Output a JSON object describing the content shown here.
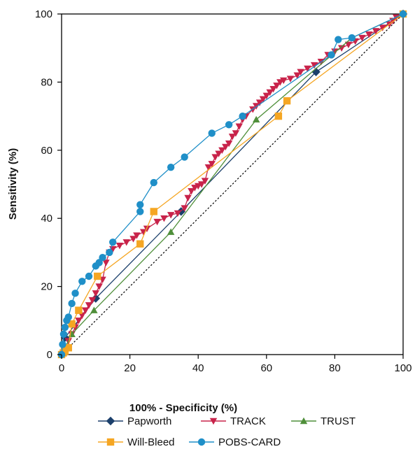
{
  "chart_data": {
    "type": "line",
    "xlabel": "100% - Specificity (%)",
    "ylabel": "Sensitivity (%)",
    "xlim": [
      0,
      100
    ],
    "ylim": [
      0,
      100
    ],
    "xticks": [
      "0",
      "20",
      "40",
      "60",
      "80",
      "100"
    ],
    "yticks": [
      "0",
      "20",
      "40",
      "60",
      "80",
      "100"
    ],
    "grid": false,
    "reference_line": "diagonal dotted line from (0,0) to (100,100)",
    "legend_position": "bottom",
    "series": [
      {
        "name": "Papworth",
        "color": "#1b3f6b",
        "marker": "diamond",
        "points": [
          [
            0,
            0
          ],
          [
            1,
            5
          ],
          [
            10,
            16.5
          ],
          [
            35,
            42
          ],
          [
            74.5,
            83
          ],
          [
            100,
            100
          ]
        ]
      },
      {
        "name": "TRACK",
        "color": "#c8234a",
        "marker": "triangle-down",
        "points": [
          [
            0,
            0
          ],
          [
            1,
            2
          ],
          [
            2,
            4
          ],
          [
            3,
            6
          ],
          [
            4,
            8
          ],
          [
            5,
            10
          ],
          [
            6,
            11.5
          ],
          [
            7,
            13
          ],
          [
            8,
            14.5
          ],
          [
            9,
            16
          ],
          [
            10,
            18
          ],
          [
            11,
            20
          ],
          [
            12,
            22
          ],
          [
            13,
            27
          ],
          [
            14,
            30
          ],
          [
            15,
            31
          ],
          [
            17,
            32
          ],
          [
            19,
            33
          ],
          [
            21,
            34
          ],
          [
            22,
            35
          ],
          [
            24,
            36
          ],
          [
            25,
            37
          ],
          [
            28,
            39
          ],
          [
            30,
            40
          ],
          [
            32,
            41
          ],
          [
            34,
            41.5
          ],
          [
            36,
            43
          ],
          [
            37,
            46
          ],
          [
            38,
            48
          ],
          [
            39,
            49
          ],
          [
            40,
            49.5
          ],
          [
            41,
            50
          ],
          [
            42,
            51
          ],
          [
            43,
            55
          ],
          [
            44,
            56
          ],
          [
            45,
            58
          ],
          [
            46,
            59
          ],
          [
            47,
            60
          ],
          [
            48,
            61
          ],
          [
            49,
            62
          ],
          [
            50,
            64
          ],
          [
            51,
            65
          ],
          [
            52,
            67
          ],
          [
            53,
            69
          ],
          [
            54,
            70
          ],
          [
            56,
            72
          ],
          [
            57,
            73
          ],
          [
            58,
            74
          ],
          [
            59,
            75
          ],
          [
            60,
            76
          ],
          [
            61,
            77
          ],
          [
            62,
            78
          ],
          [
            63,
            79
          ],
          [
            64,
            80
          ],
          [
            65,
            80.5
          ],
          [
            67,
            81
          ],
          [
            69,
            82
          ],
          [
            70,
            83
          ],
          [
            72,
            84
          ],
          [
            74,
            85
          ],
          [
            76,
            86
          ],
          [
            78,
            88
          ],
          [
            80,
            89
          ],
          [
            82,
            90
          ],
          [
            84,
            91
          ],
          [
            86,
            92
          ],
          [
            88,
            93
          ],
          [
            90,
            94
          ],
          [
            92,
            95
          ],
          [
            94,
            96
          ],
          [
            96,
            97
          ],
          [
            97,
            98
          ],
          [
            98,
            99
          ],
          [
            100,
            100
          ]
        ]
      },
      {
        "name": "TRUST",
        "color": "#4f8f3a",
        "marker": "triangle-up",
        "points": [
          [
            0,
            0
          ],
          [
            1,
            2
          ],
          [
            3,
            6
          ],
          [
            9.5,
            13
          ],
          [
            32,
            36
          ],
          [
            57,
            69
          ],
          [
            85,
            93
          ],
          [
            100,
            100
          ]
        ]
      },
      {
        "name": "Will-Bleed",
        "color": "#f5a623",
        "marker": "square",
        "points": [
          [
            0,
            0
          ],
          [
            0.5,
            0.5
          ],
          [
            1,
            1
          ],
          [
            2,
            2
          ],
          [
            3,
            9
          ],
          [
            5,
            13
          ],
          [
            10.5,
            23
          ],
          [
            23,
            32.5
          ],
          [
            27,
            42
          ],
          [
            63.5,
            70
          ],
          [
            66,
            74.5
          ],
          [
            100,
            100
          ]
        ]
      },
      {
        "name": "POBS-CARD",
        "color": "#1f8fc8",
        "marker": "circle",
        "points": [
          [
            0,
            0
          ],
          [
            0.3,
            3
          ],
          [
            0.6,
            6
          ],
          [
            1,
            8
          ],
          [
            1.5,
            10
          ],
          [
            2,
            11
          ],
          [
            3,
            15
          ],
          [
            4,
            18
          ],
          [
            6,
            21.5
          ],
          [
            8,
            23
          ],
          [
            10,
            26
          ],
          [
            11,
            27
          ],
          [
            12,
            28.5
          ],
          [
            14,
            30
          ],
          [
            15,
            33
          ],
          [
            23,
            42
          ],
          [
            23,
            44
          ],
          [
            27,
            50.5
          ],
          [
            32,
            55
          ],
          [
            36,
            58
          ],
          [
            44,
            65
          ],
          [
            49,
            67.5
          ],
          [
            53,
            70
          ],
          [
            79,
            88
          ],
          [
            81,
            92.5
          ],
          [
            85,
            93
          ],
          [
            100,
            100
          ]
        ]
      }
    ]
  }
}
